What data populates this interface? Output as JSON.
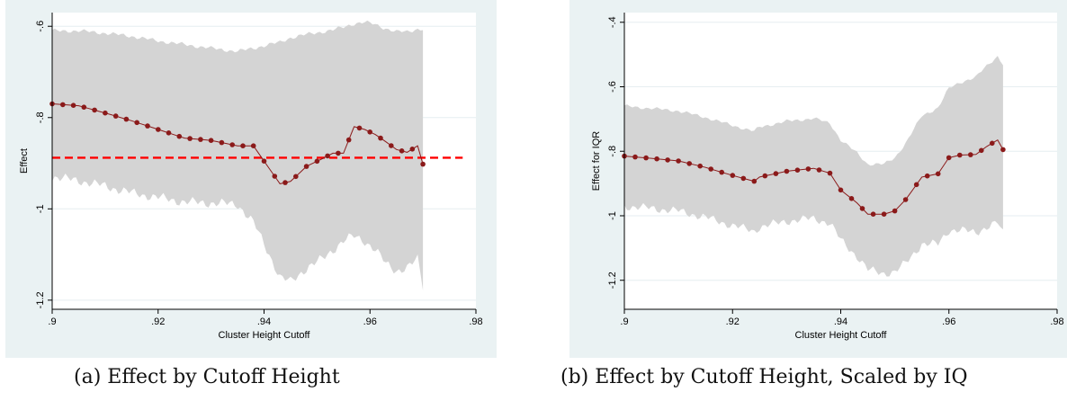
{
  "captions": {
    "a": "(a) Effect by Cutoff Height",
    "b": "(b) Effect by Cutoff Height, Scaled by IQ"
  },
  "colors": {
    "band": "#d4d4d4",
    "line": "#8b1a1a",
    "ref": "#ff0000",
    "panel_bg": "#eaf2f3",
    "plot_bg": "#ffffff",
    "grid": "#e6eef0"
  },
  "chart_data": [
    {
      "type": "line",
      "xlabel": "Cluster Height Cutoff",
      "ylabel": "Effect",
      "xlim": [
        0.9,
        0.98
      ],
      "ylim": [
        -1.22,
        -0.57
      ],
      "y_reversed": true,
      "xticks": [
        ".9",
        ".92",
        ".94",
        ".96",
        ".98"
      ],
      "xtick_values": [
        0.9,
        0.92,
        0.94,
        0.96,
        0.98
      ],
      "yticks": [
        "-.6",
        "-.8",
        "-1",
        "-1.2"
      ],
      "ytick_values": [
        -0.6,
        -0.8,
        -1.0,
        -1.2
      ],
      "reference_line": {
        "y": -0.888,
        "style": "dashed",
        "color": "#ff0000"
      },
      "x": [
        0.9,
        0.905,
        0.91,
        0.915,
        0.92,
        0.925,
        0.93,
        0.935,
        0.938,
        0.941,
        0.943,
        0.945,
        0.948,
        0.951,
        0.953,
        0.955,
        0.957,
        0.959,
        0.961,
        0.963,
        0.965,
        0.967,
        0.969,
        0.97
      ],
      "y": [
        -0.77,
        -0.774,
        -0.79,
        -0.807,
        -0.826,
        -0.845,
        -0.85,
        -0.862,
        -0.862,
        -0.912,
        -0.945,
        -0.94,
        -0.907,
        -0.89,
        -0.878,
        -0.878,
        -0.82,
        -0.826,
        -0.837,
        -0.853,
        -0.87,
        -0.876,
        -0.862,
        -0.902
      ],
      "ci_upper": [
        -0.61,
        -0.61,
        -0.615,
        -0.622,
        -0.632,
        -0.64,
        -0.648,
        -0.655,
        -0.648,
        -0.64,
        -0.635,
        -0.625,
        -0.618,
        -0.612,
        -0.608,
        -0.602,
        -0.594,
        -0.591,
        -0.596,
        -0.605,
        -0.612,
        -0.612,
        -0.606,
        -0.606
      ],
      "ci_lower": [
        -0.93,
        -0.938,
        -0.95,
        -0.965,
        -0.975,
        -0.985,
        -0.987,
        -0.99,
        -1.03,
        -1.1,
        -1.15,
        -1.16,
        -1.13,
        -1.11,
        -1.09,
        -1.07,
        -1.06,
        -1.07,
        -1.09,
        -1.12,
        -1.135,
        -1.13,
        -1.11,
        -1.17
      ]
    },
    {
      "type": "line",
      "xlabel": "Cluster Height Cutoff",
      "ylabel": "Effect for IQR",
      "xlim": [
        0.9,
        0.98
      ],
      "ylim": [
        -1.29,
        -0.37
      ],
      "y_reversed": true,
      "xticks": [
        ".9",
        ".92",
        ".94",
        ".96",
        ".98"
      ],
      "xtick_values": [
        0.9,
        0.92,
        0.94,
        0.96,
        0.98
      ],
      "yticks": [
        "-.4",
        "-.6",
        "-.8",
        "-1",
        "-1.2"
      ],
      "ytick_values": [
        -0.4,
        -0.6,
        -0.8,
        -1.0,
        -1.2
      ],
      "x": [
        0.9,
        0.905,
        0.91,
        0.915,
        0.92,
        0.924,
        0.925,
        0.93,
        0.935,
        0.938,
        0.94,
        0.943,
        0.945,
        0.948,
        0.95,
        0.952,
        0.955,
        0.958,
        0.96,
        0.962,
        0.965,
        0.967,
        0.969,
        0.97
      ],
      "y": [
        -0.815,
        -0.822,
        -0.83,
        -0.85,
        -0.875,
        -0.893,
        -0.88,
        -0.862,
        -0.853,
        -0.868,
        -0.92,
        -0.96,
        -0.995,
        -0.995,
        -0.985,
        -0.95,
        -0.88,
        -0.87,
        -0.82,
        -0.812,
        -0.81,
        -0.785,
        -0.765,
        -0.795
      ]
    }
  ]
}
